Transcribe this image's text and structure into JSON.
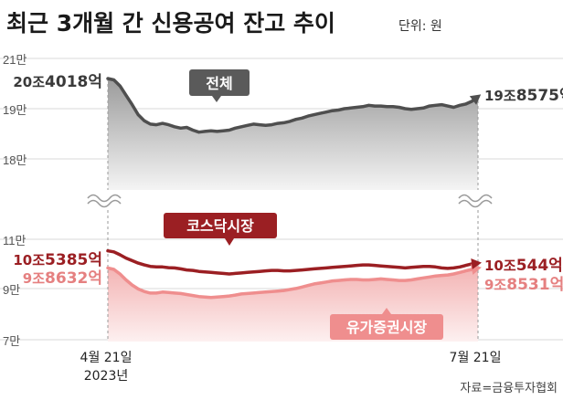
{
  "title": "최근 3개월 간 신용공여 잔고 추이",
  "unit_label": "단위: 원",
  "source": "자료=금융투자협회",
  "colors": {
    "total": "#4f4f4f",
    "kosdaq": "#9b1f23",
    "kospi": "#ef8e8e",
    "grid": "#d9d9d9"
  },
  "chart_data": {
    "type": "line",
    "x_start": "4월 21일",
    "x_start_year": "2023년",
    "x_end": "7월 21일",
    "axis_break": true,
    "upper": {
      "ylim": [
        18,
        21
      ],
      "tick_labels": [
        "21만",
        "19만",
        "18만"
      ],
      "tick_values": [
        21,
        19,
        18
      ]
    },
    "lower": {
      "ylim": [
        7,
        11
      ],
      "tick_labels": [
        "11만",
        "9만",
        "7만"
      ],
      "tick_values": [
        11,
        9,
        7
      ]
    },
    "series": [
      {
        "name": "전체",
        "key": "total",
        "panel": "upper",
        "start_label_a": "20조",
        "start_label_b": "4018억",
        "end_label_a": "19조",
        "end_label_b": "8575억",
        "values": [
          20.4,
          20.36,
          20.18,
          19.9,
          19.62,
          19.32,
          19.14,
          19.04,
          19.02,
          19.06,
          19.02,
          18.96,
          18.92,
          18.94,
          18.86,
          18.8,
          18.82,
          18.84,
          18.82,
          18.84,
          18.86,
          18.92,
          18.96,
          19.0,
          19.04,
          19.02,
          19.0,
          19.02,
          19.06,
          19.08,
          19.12,
          19.18,
          19.22,
          19.28,
          19.32,
          19.36,
          19.4,
          19.44,
          19.46,
          19.5,
          19.52,
          19.54,
          19.56,
          19.6,
          19.58,
          19.58,
          19.56,
          19.56,
          19.54,
          19.5,
          19.48,
          19.5,
          19.52,
          19.58,
          19.6,
          19.62,
          19.58,
          19.54,
          19.6,
          19.64,
          19.72,
          19.86
        ]
      },
      {
        "name": "코스닥시장",
        "key": "kosdaq",
        "panel": "lower",
        "start_label_a": "10조",
        "start_label_b": "5385억",
        "end_label_a": "10조",
        "end_label_b": "544억",
        "values": [
          10.54,
          10.5,
          10.38,
          10.25,
          10.15,
          10.05,
          9.98,
          9.92,
          9.9,
          9.9,
          9.87,
          9.86,
          9.82,
          9.78,
          9.76,
          9.72,
          9.7,
          9.68,
          9.66,
          9.64,
          9.62,
          9.64,
          9.66,
          9.68,
          9.7,
          9.72,
          9.74,
          9.76,
          9.76,
          9.74,
          9.74,
          9.76,
          9.78,
          9.8,
          9.82,
          9.84,
          9.86,
          9.88,
          9.9,
          9.92,
          9.94,
          9.96,
          9.98,
          9.98,
          9.96,
          9.94,
          9.92,
          9.9,
          9.88,
          9.86,
          9.88,
          9.9,
          9.92,
          9.92,
          9.9,
          9.86,
          9.84,
          9.86,
          9.9,
          9.96,
          10.02,
          10.05
        ]
      },
      {
        "name": "유가증권시장",
        "key": "kospi",
        "panel": "lower",
        "start_label_a": "9조",
        "start_label_b": "8632억",
        "end_label_a": "9조",
        "end_label_b": "8531억",
        "values": [
          9.86,
          9.8,
          9.62,
          9.38,
          9.18,
          9.02,
          8.92,
          8.86,
          8.86,
          8.9,
          8.88,
          8.86,
          8.84,
          8.8,
          8.76,
          8.72,
          8.7,
          8.68,
          8.7,
          8.72,
          8.74,
          8.78,
          8.82,
          8.84,
          8.86,
          8.88,
          8.9,
          8.92,
          8.94,
          8.96,
          9.0,
          9.04,
          9.1,
          9.16,
          9.22,
          9.26,
          9.3,
          9.34,
          9.36,
          9.38,
          9.4,
          9.4,
          9.38,
          9.38,
          9.4,
          9.42,
          9.4,
          9.38,
          9.36,
          9.36,
          9.38,
          9.42,
          9.46,
          9.5,
          9.54,
          9.56,
          9.58,
          9.62,
          9.68,
          9.74,
          9.8,
          9.85
        ]
      }
    ]
  }
}
